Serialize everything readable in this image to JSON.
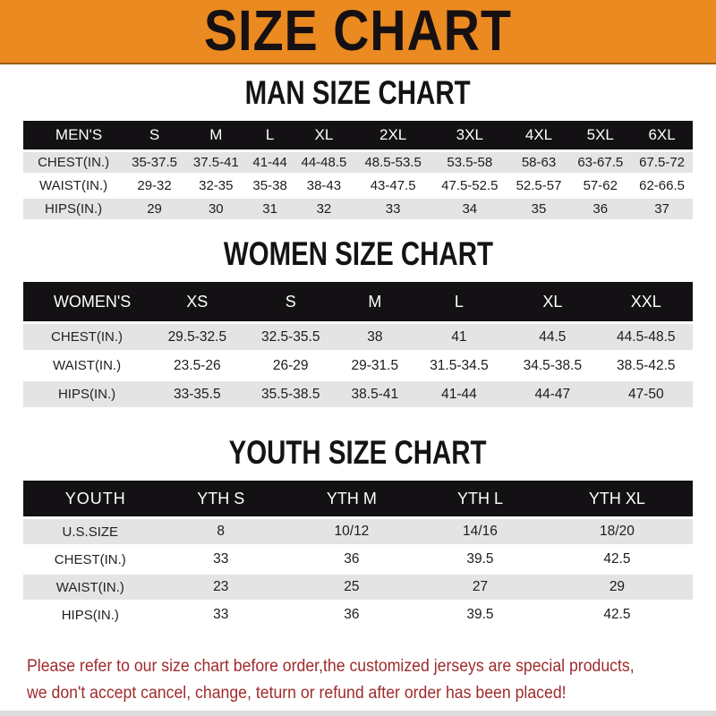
{
  "banner": {
    "title": "SIZE CHART",
    "bg_color": "#EA8A20",
    "text_color": "#161013"
  },
  "colors": {
    "table_header_bg": "#141114",
    "table_header_text": "#ffffff",
    "row_shade": "#E5E4E4",
    "notice_text": "#9E2B2B"
  },
  "men": {
    "heading": "MAN SIZE CHART",
    "header_label": "MEN'S",
    "columns": [
      "S",
      "M",
      "L",
      "XL",
      "2XL",
      "3XL",
      "4XL",
      "5XL",
      "6XL"
    ],
    "rows": [
      {
        "label": "CHEST(IN.)",
        "values": [
          "35-37.5",
          "37.5-41",
          "41-44",
          "44-48.5",
          "48.5-53.5",
          "53.5-58",
          "58-63",
          "63-67.5",
          "67.5-72"
        ]
      },
      {
        "label": "WAIST(IN.)",
        "values": [
          "29-32",
          "32-35",
          "35-38",
          "38-43",
          "43-47.5",
          "47.5-52.5",
          "52.5-57",
          "57-62",
          "62-66.5"
        ]
      },
      {
        "label": "HIPS(IN.)",
        "values": [
          "29",
          "30",
          "31",
          "32",
          "33",
          "34",
          "35",
          "36",
          "37"
        ]
      }
    ]
  },
  "women": {
    "heading": "WOMEN SIZE CHART",
    "header_label": "WOMEN'S",
    "columns": [
      "XS",
      "S",
      "M",
      "L",
      "XL",
      "XXL"
    ],
    "rows": [
      {
        "label": "CHEST(IN.)",
        "values": [
          "29.5-32.5",
          "32.5-35.5",
          "38",
          "41",
          "44.5",
          "44.5-48.5"
        ]
      },
      {
        "label": "WAIST(IN.)",
        "values": [
          "23.5-26",
          "26-29",
          "29-31.5",
          "31.5-34.5",
          "34.5-38.5",
          "38.5-42.5"
        ]
      },
      {
        "label": "HIPS(IN.)",
        "values": [
          "33-35.5",
          "35.5-38.5",
          "38.5-41",
          "41-44",
          "44-47",
          "47-50"
        ]
      }
    ]
  },
  "youth": {
    "heading": "YOUTH SIZE CHART",
    "header_label": "YOUTH",
    "columns": [
      "YTH S",
      "YTH M",
      "YTH L",
      "YTH XL"
    ],
    "rows": [
      {
        "label": "U.S.SIZE",
        "values": [
          "8",
          "10/12",
          "14/16",
          "18/20"
        ]
      },
      {
        "label": "CHEST(IN.)",
        "values": [
          "33",
          "36",
          "39.5",
          "42.5"
        ]
      },
      {
        "label": "WAIST(IN.)",
        "values": [
          "23",
          "25",
          "27",
          "29"
        ]
      },
      {
        "label": "HIPS(IN.)",
        "values": [
          "33",
          "36",
          "39.5",
          "42.5"
        ]
      }
    ]
  },
  "notice": {
    "line1": "Please refer to our size chart before order,the customized jerseys are special products,",
    "line2": "we don't accept cancel, change, teturn or refund after order has been placed!"
  }
}
